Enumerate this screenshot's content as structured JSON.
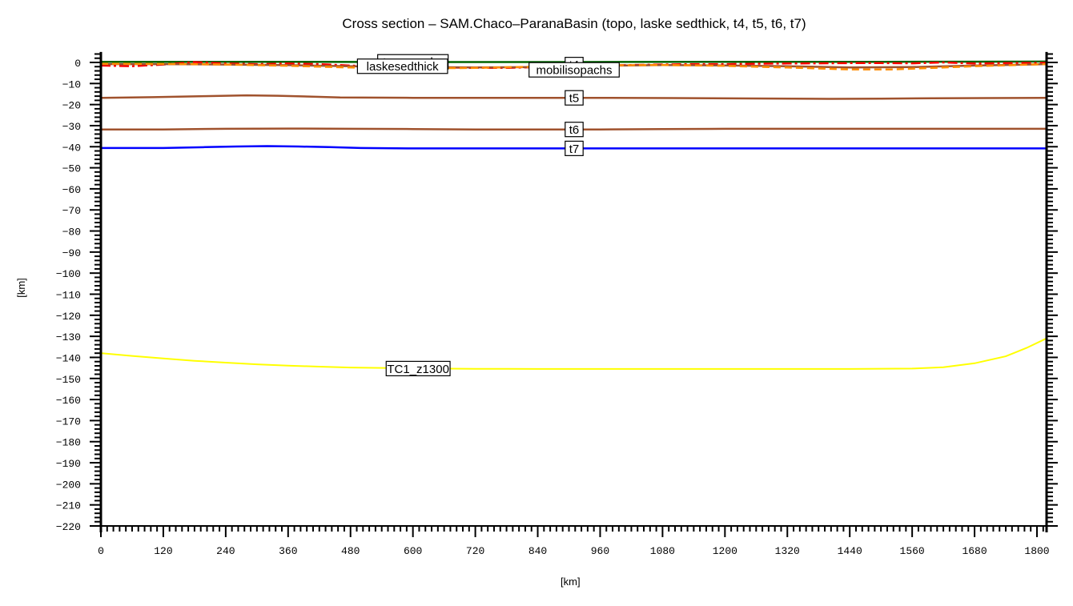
{
  "chart_data": {
    "type": "line",
    "title": "Cross section – SAM.Chaco–ParanaBasin (topo, laske sedthick, t4, t5, t6, t7)",
    "xlabel": "[km]",
    "ylabel": "[km]",
    "xlim": [
      0,
      1818
    ],
    "ylim": [
      -220,
      5
    ],
    "grid": false,
    "legend": "inline labels",
    "x_ticks": [
      0,
      120,
      240,
      360,
      480,
      600,
      720,
      840,
      960,
      1080,
      1200,
      1320,
      1440,
      1560,
      1680,
      1800
    ],
    "y_ticks": [
      0,
      -10,
      -20,
      -30,
      -40,
      -50,
      -60,
      -70,
      -80,
      -90,
      -100,
      -110,
      -120,
      -130,
      -140,
      -150,
      -160,
      -170,
      -180,
      -190,
      -200,
      -210,
      -220
    ],
    "series": [
      {
        "name": "topography",
        "color": "#006400",
        "style": "solid",
        "x": [
          0,
          300,
          600,
          900,
          1200,
          1500,
          1818
        ],
        "y": [
          0.3,
          0.3,
          0.2,
          0.2,
          0.3,
          0.3,
          0.4
        ]
      },
      {
        "name": "laskesedthick",
        "color": "#ff0000",
        "style": "dashdot",
        "x": [
          0,
          60,
          120,
          180,
          240,
          300,
          360,
          420,
          480,
          540,
          600,
          660,
          720,
          780,
          840,
          900,
          960,
          1020,
          1080,
          1140,
          1200,
          1260,
          1320,
          1380,
          1440,
          1500,
          1560,
          1620,
          1680,
          1740,
          1818
        ],
        "y": [
          -1.5,
          -1.8,
          -1.0,
          0.2,
          -0.5,
          -0.8,
          -0.5,
          -0.8,
          -1.5,
          -2.0,
          -2.2,
          -2.4,
          -2.6,
          -2.6,
          -2.2,
          -1.8,
          -1.5,
          -1.2,
          -1.0,
          -0.8,
          -0.8,
          -0.6,
          -0.5,
          -0.4,
          -0.3,
          -0.3,
          -0.4,
          0.0,
          -0.5,
          -0.3,
          -0.2
        ]
      },
      {
        "name": "t4",
        "color": "#a0522d",
        "style": "solid",
        "x": [
          0,
          120,
          240,
          360,
          480,
          600,
          720,
          840,
          960,
          1080,
          1200,
          1320,
          1440,
          1560,
          1680,
          1818
        ],
        "y": [
          -0.8,
          -0.8,
          -1.0,
          -1.3,
          -1.8,
          -2.2,
          -2.4,
          -2.2,
          -1.6,
          -1.2,
          -1.4,
          -1.8,
          -2.4,
          -2.2,
          -1.5,
          -0.8
        ]
      },
      {
        "name": "mobilisopachs",
        "color": "#ff8c00",
        "style": "dashed",
        "x": [
          0,
          120,
          240,
          360,
          480,
          600,
          720,
          840,
          960,
          1080,
          1200,
          1320,
          1440,
          1520,
          1600,
          1680,
          1818
        ],
        "y": [
          -0.6,
          -0.7,
          -1.0,
          -1.6,
          -2.4,
          -2.8,
          -2.6,
          -2.0,
          -1.4,
          -1.2,
          -1.6,
          -2.4,
          -3.3,
          -3.3,
          -2.6,
          -1.8,
          -0.8
        ]
      },
      {
        "name": "t5",
        "color": "#a0522d",
        "style": "solid",
        "x": [
          0,
          100,
          200,
          280,
          340,
          400,
          460,
          600,
          800,
          960,
          1100,
          1250,
          1400,
          1500,
          1600,
          1700,
          1818
        ],
        "y": [
          -16.8,
          -16.5,
          -16.0,
          -15.6,
          -15.8,
          -16.2,
          -16.6,
          -16.8,
          -16.8,
          -16.8,
          -16.9,
          -17.1,
          -17.3,
          -17.2,
          -17.0,
          -16.9,
          -16.8
        ]
      },
      {
        "name": "t6",
        "color": "#a0522d",
        "style": "solid",
        "x": [
          0,
          120,
          240,
          360,
          480,
          600,
          720,
          840,
          960,
          1080,
          1200,
          1320,
          1440,
          1560,
          1680,
          1818
        ],
        "y": [
          -31.8,
          -31.8,
          -31.5,
          -31.4,
          -31.5,
          -31.6,
          -31.8,
          -31.8,
          -31.8,
          -31.6,
          -31.5,
          -31.5,
          -31.5,
          -31.5,
          -31.5,
          -31.5
        ]
      },
      {
        "name": "t7",
        "color": "#0000ff",
        "style": "solid",
        "x": [
          0,
          120,
          200,
          260,
          320,
          380,
          440,
          500,
          600,
          720,
          900,
          1200,
          1500,
          1818
        ],
        "y": [
          -40.6,
          -40.6,
          -40.2,
          -39.9,
          -39.7,
          -39.9,
          -40.2,
          -40.6,
          -40.8,
          -40.8,
          -40.8,
          -40.8,
          -40.8,
          -40.8
        ]
      },
      {
        "name": "TC1_z1300",
        "color": "#ffff00",
        "style": "solid",
        "x": [
          0,
          60,
          120,
          180,
          240,
          300,
          360,
          420,
          480,
          600,
          720,
          840,
          960,
          1080,
          1200,
          1320,
          1440,
          1560,
          1620,
          1680,
          1740,
          1780,
          1818
        ],
        "y": [
          -138.0,
          -139.3,
          -140.5,
          -141.6,
          -142.5,
          -143.3,
          -143.9,
          -144.4,
          -144.8,
          -145.2,
          -145.4,
          -145.5,
          -145.5,
          -145.5,
          -145.5,
          -145.5,
          -145.5,
          -145.3,
          -144.7,
          -142.8,
          -139.5,
          -135.5,
          -131.0
        ]
      }
    ],
    "annotations": [
      {
        "text": "topography",
        "x": 600,
        "y": 0.3
      },
      {
        "text": "laskesedthick",
        "x": 580,
        "y": -1.8
      },
      {
        "text": "t4",
        "x": 910,
        "y": -1.0
      },
      {
        "text": "mobilisopachs",
        "x": 910,
        "y": -3.5
      },
      {
        "text": "t5",
        "x": 910,
        "y": -16.8
      },
      {
        "text": "t6",
        "x": 910,
        "y": -31.8
      },
      {
        "text": "t7",
        "x": 910,
        "y": -40.8
      },
      {
        "text": "TC1_z1300",
        "x": 610,
        "y": -145.3
      }
    ]
  }
}
